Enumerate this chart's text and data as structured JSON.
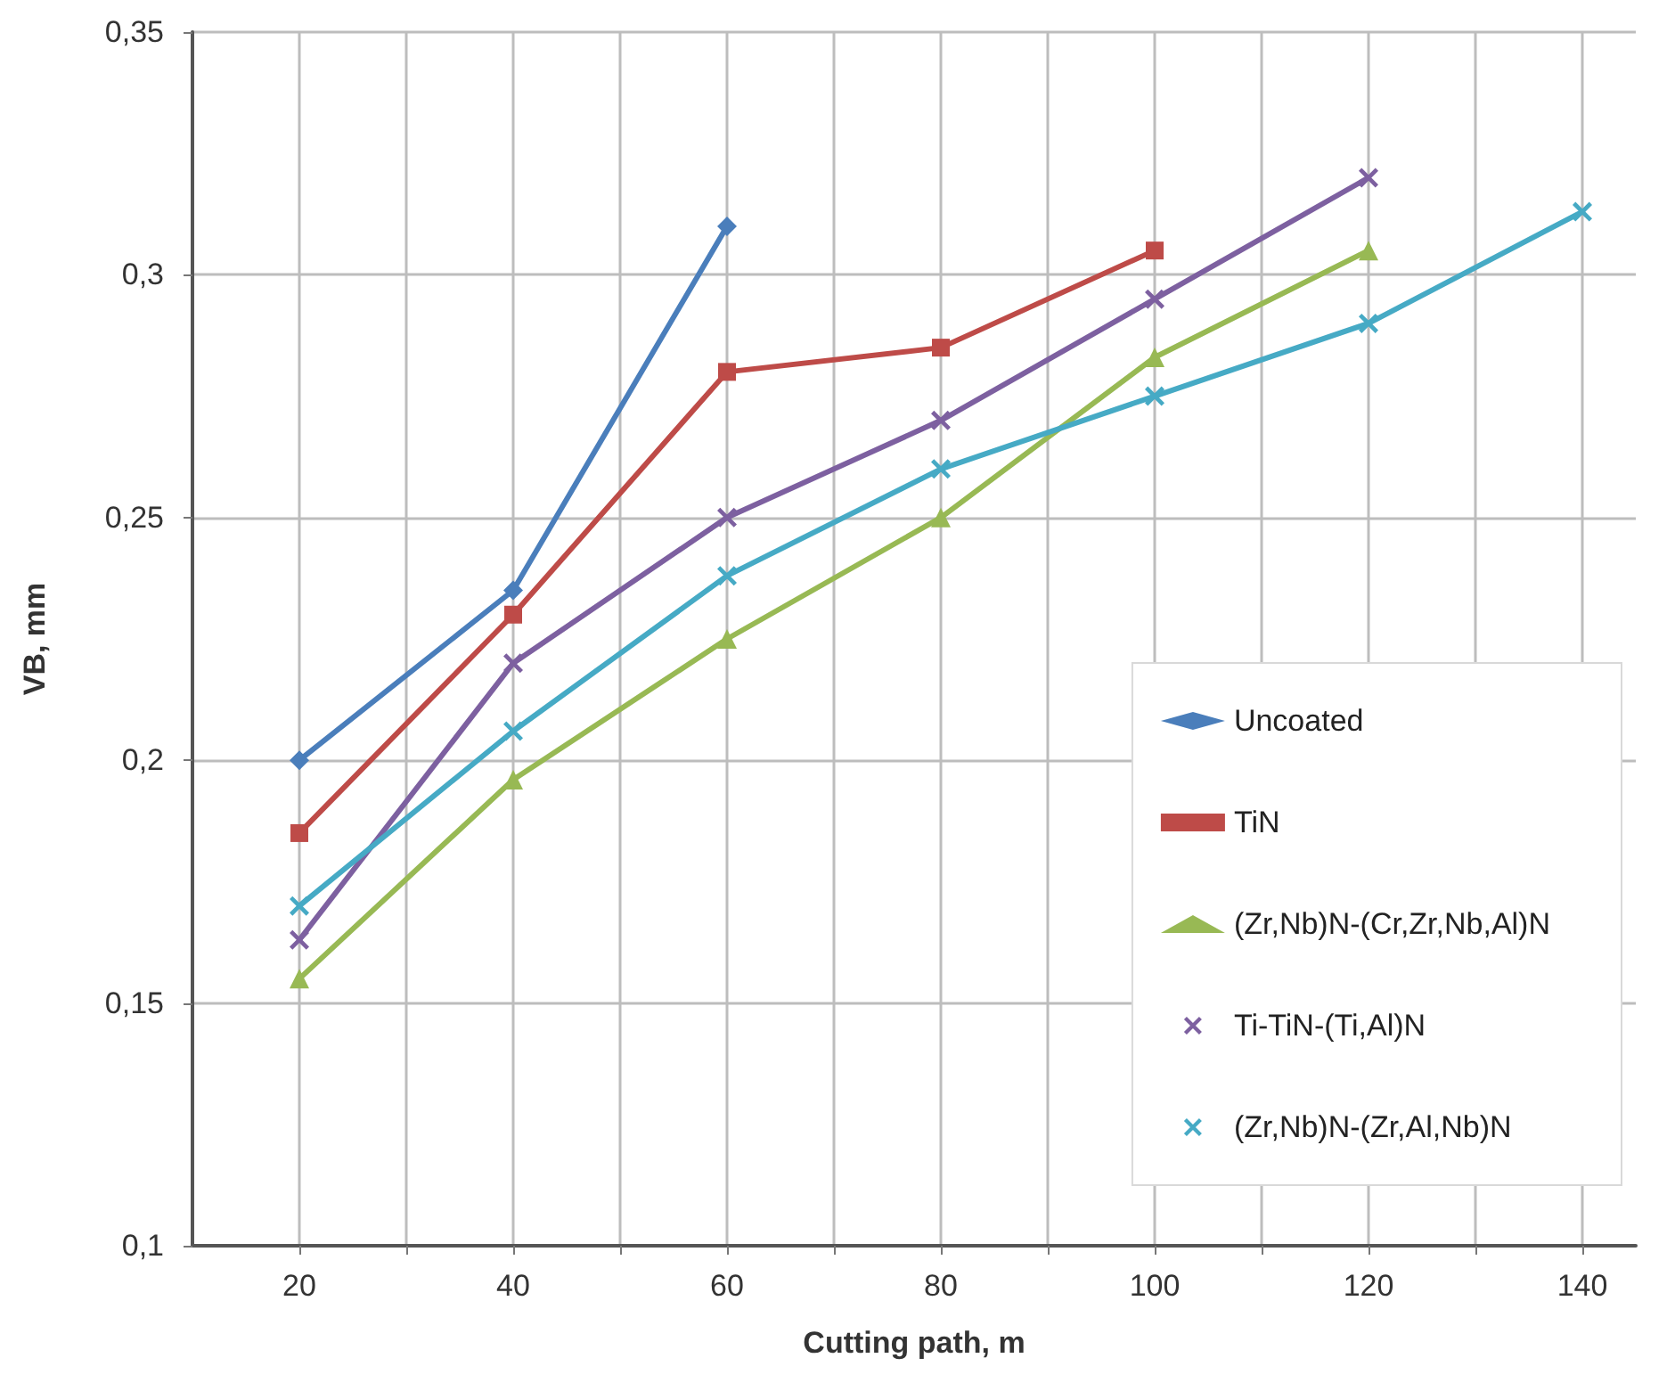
{
  "chart_data": {
    "type": "line",
    "xlabel": "Cutting path, m",
    "ylabel": "VB, mm",
    "xlim": [
      10,
      145
    ],
    "xticks": [
      20,
      {
        "value": 30,
        "label": null
      },
      40,
      {
        "value": 50,
        "label": null
      },
      60,
      {
        "value": 70,
        "label": null
      },
      80,
      {
        "value": 90,
        "label": null
      },
      100,
      {
        "value": 110,
        "label": null
      },
      120,
      {
        "value": 130,
        "label": null
      },
      140
    ],
    "ylim": [
      0.1,
      0.35
    ],
    "yticks": [
      {
        "value": 0.1,
        "label": "0,1"
      },
      {
        "value": 0.15,
        "label": "0,15"
      },
      {
        "value": 0.2,
        "label": "0,2"
      },
      {
        "value": 0.25,
        "label": "0,25"
      },
      {
        "value": 0.3,
        "label": "0,3"
      },
      {
        "value": 0.35,
        "label": "0,35"
      }
    ],
    "grid": true,
    "legend": "bottom right",
    "line_style": "solid",
    "series": [
      {
        "name": "Uncoated",
        "color": "#4a7ebb",
        "marker": "diamond",
        "x": [
          20,
          40,
          60
        ],
        "values": [
          0.2,
          0.235,
          0.31
        ]
      },
      {
        "name": "TiN",
        "color": "#be4b48",
        "marker": "square",
        "x": [
          20,
          40,
          60,
          80,
          100
        ],
        "values": [
          0.185,
          0.23,
          0.28,
          0.285,
          0.305
        ]
      },
      {
        "name": "(Zr,Nb)N-(Cr,Zr,Nb,Al)N",
        "color": "#98b954",
        "marker": "triangle",
        "x": [
          20,
          40,
          60,
          80,
          100,
          120
        ],
        "values": [
          0.155,
          0.196,
          0.225,
          0.25,
          0.283,
          0.305
        ]
      },
      {
        "name": "Ti-TiN-(Ti,Al)N",
        "color": "#7d60a0",
        "marker": "cross",
        "x": [
          20,
          40,
          60,
          80,
          100,
          120
        ],
        "values": [
          0.163,
          0.22,
          0.25,
          0.27,
          0.295,
          0.32
        ]
      },
      {
        "name": "(Zr,Nb)N-(Zr,Al,Nb)N",
        "color": "#46aac5",
        "marker": "cross",
        "x": [
          20,
          40,
          60,
          80,
          100,
          120,
          140
        ],
        "values": [
          0.17,
          0.206,
          0.238,
          0.26,
          0.275,
          0.29,
          0.313
        ]
      }
    ]
  }
}
